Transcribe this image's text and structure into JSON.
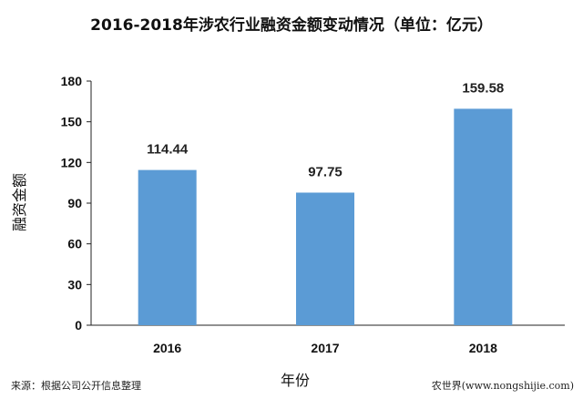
{
  "chart_data": {
    "type": "bar",
    "title": "2016-2018年涉农行业融资金额变动情况（单位：亿元）",
    "xlabel": "年份",
    "ylabel": "融资金额",
    "categories": [
      "2016",
      "2017",
      "2018"
    ],
    "values": [
      114.44,
      97.75,
      159.58
    ],
    "data_labels": [
      "114.44",
      "97.75",
      "159.58"
    ],
    "ylim": [
      0,
      180
    ],
    "yticks": [
      0,
      30,
      60,
      90,
      120,
      150,
      180
    ],
    "grid": false,
    "legend": "none",
    "bar_color": "#5b9bd5"
  },
  "footer": {
    "source": "来源：根据公司公开信息整理",
    "watermark": "农世界(www.nongshijie.com)"
  }
}
